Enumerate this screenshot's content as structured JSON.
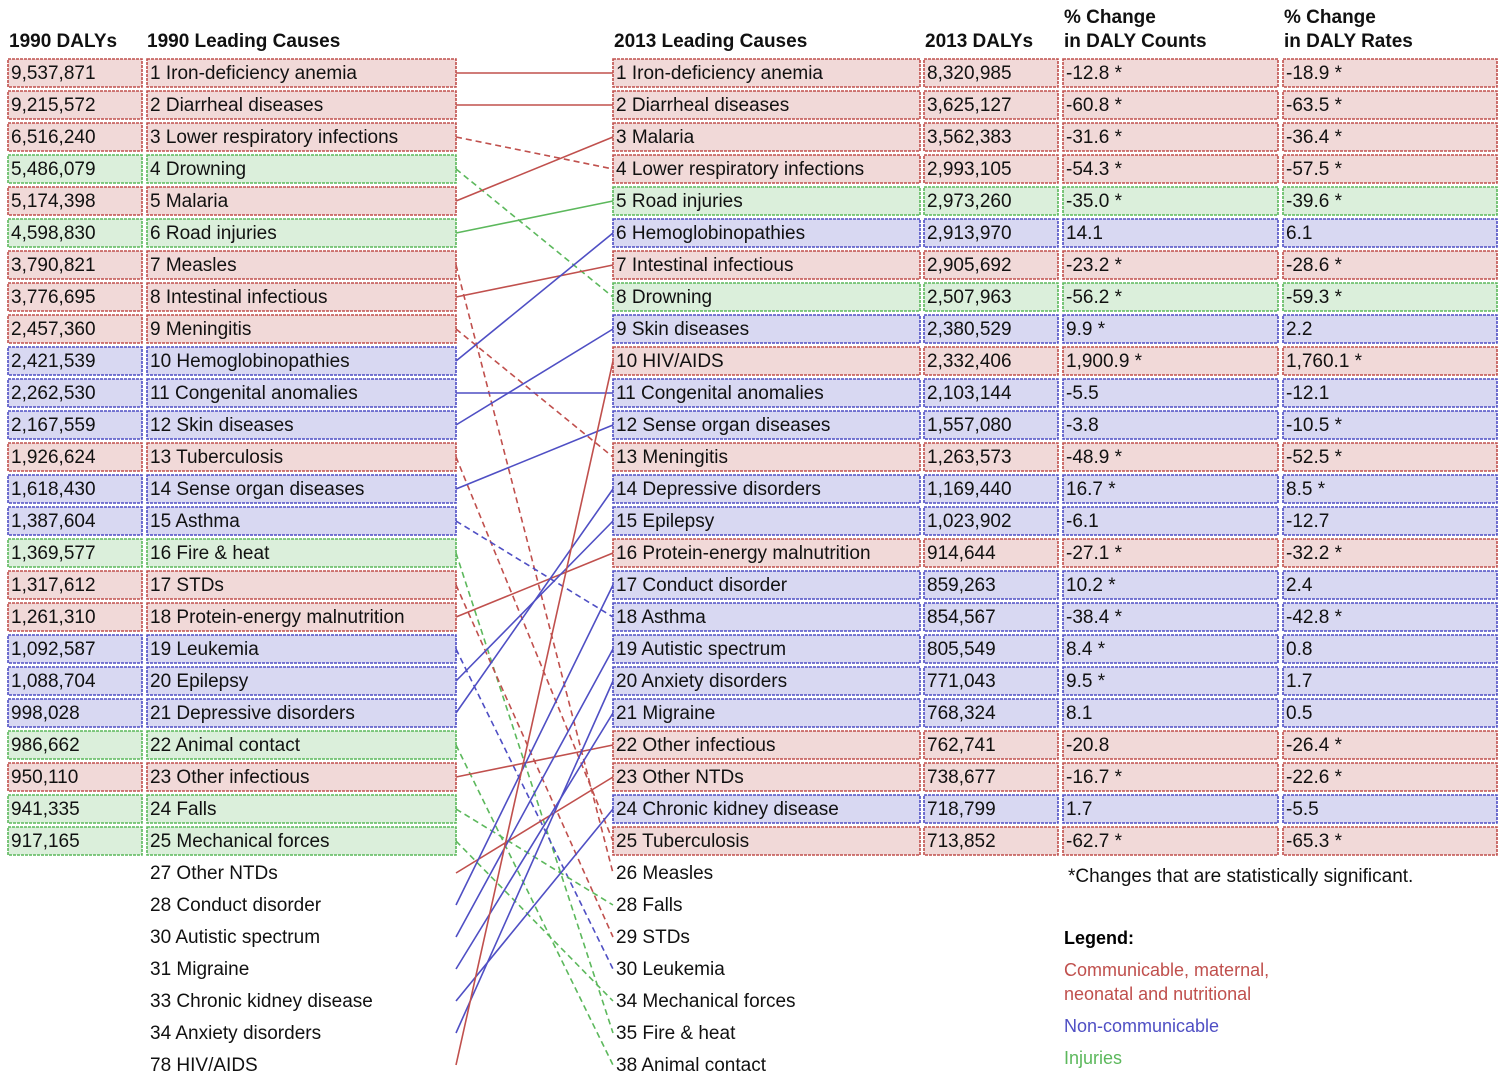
{
  "headers": {
    "daly1990": "1990 DALYs",
    "causes1990": "1990 Leading Causes",
    "causes2013": "2013 Leading Causes",
    "daly2013": "2013 DALYs",
    "counts": [
      "% Change",
      "in DALY Counts"
    ],
    "rates": [
      "% Change",
      "in DALY Rates"
    ]
  },
  "left": [
    {
      "label": "1 Iron-deficiency anemia",
      "daly": "9,537,871",
      "color": "#c0504d"
    },
    {
      "label": "2 Diarrheal diseases",
      "daly": "9,215,572",
      "color": "#c0504d"
    },
    {
      "label": "3 Lower respiratory infections",
      "daly": "6,516,240",
      "color": "#c0504d"
    },
    {
      "label": "4 Drowning",
      "daly": "5,486,079",
      "color": "#5cb85c"
    },
    {
      "label": "5 Malaria",
      "daly": "5,174,398",
      "color": "#c0504d"
    },
    {
      "label": "6 Road injuries",
      "daly": "4,598,830",
      "color": "#5cb85c"
    },
    {
      "label": "7 Measles",
      "daly": "3,790,821",
      "color": "#c0504d"
    },
    {
      "label": "8 Intestinal infectious",
      "daly": "3,776,695",
      "color": "#c0504d"
    },
    {
      "label": "9 Meningitis",
      "daly": "2,457,360",
      "color": "#c0504d"
    },
    {
      "label": "10 Hemoglobinopathies",
      "daly": "2,421,539",
      "color": "#4f4fc4"
    },
    {
      "label": "11 Congenital anomalies",
      "daly": "2,262,530",
      "color": "#4f4fc4"
    },
    {
      "label": "12 Skin diseases",
      "daly": "2,167,559",
      "color": "#4f4fc4"
    },
    {
      "label": "13 Tuberculosis",
      "daly": "1,926,624",
      "color": "#c0504d"
    },
    {
      "label": "14 Sense organ diseases",
      "daly": "1,618,430",
      "color": "#4f4fc4"
    },
    {
      "label": "15 Asthma",
      "daly": "1,387,604",
      "color": "#4f4fc4"
    },
    {
      "label": "16 Fire & heat",
      "daly": "1,369,577",
      "color": "#5cb85c"
    },
    {
      "label": "17 STDs",
      "daly": "1,317,612",
      "color": "#c0504d"
    },
    {
      "label": "18 Protein-energy malnutrition",
      "daly": "1,261,310",
      "color": "#c0504d"
    },
    {
      "label": "19 Leukemia",
      "daly": "1,092,587",
      "color": "#4f4fc4"
    },
    {
      "label": "20 Epilepsy",
      "daly": "1,088,704",
      "color": "#4f4fc4"
    },
    {
      "label": "21 Depressive disorders",
      "daly": "998,028",
      "color": "#4f4fc4"
    },
    {
      "label": "22 Animal contact",
      "daly": "986,662",
      "color": "#5cb85c"
    },
    {
      "label": "23 Other infectious",
      "daly": "950,110",
      "color": "#c0504d"
    },
    {
      "label": "24 Falls",
      "daly": "941,335",
      "color": "#5cb85c"
    },
    {
      "label": "25 Mechanical forces",
      "daly": "917,165",
      "color": "#5cb85c"
    },
    {
      "label": "27 Other NTDs",
      "color": "#c0504d"
    },
    {
      "label": "28 Conduct disorder",
      "color": "#4f4fc4"
    },
    {
      "label": "30 Autistic spectrum",
      "color": "#4f4fc4"
    },
    {
      "label": "31 Migraine",
      "color": "#4f4fc4"
    },
    {
      "label": "33 Chronic kidney disease",
      "color": "#4f4fc4"
    },
    {
      "label": "34 Anxiety disorders",
      "color": "#4f4fc4"
    },
    {
      "label": "78 HIV/AIDS",
      "color": "#c0504d"
    }
  ],
  "right": [
    {
      "label": "1 Iron-deficiency anemia",
      "daly": "8,320,985",
      "counts": "-12.8 *",
      "rates": "-18.9 *",
      "color": "#c0504d"
    },
    {
      "label": "2 Diarrheal diseases",
      "daly": "3,625,127",
      "counts": "-60.8 *",
      "rates": "-63.5 *",
      "color": "#c0504d"
    },
    {
      "label": "3 Malaria",
      "daly": "3,562,383",
      "counts": "-31.6 *",
      "rates": "-36.4 *",
      "color": "#c0504d"
    },
    {
      "label": "4 Lower respiratory infections",
      "daly": "2,993,105",
      "counts": "-54.3 *",
      "rates": "-57.5 *",
      "color": "#c0504d"
    },
    {
      "label": "5 Road injuries",
      "daly": "2,973,260",
      "counts": "-35.0 *",
      "rates": "-39.6 *",
      "color": "#5cb85c"
    },
    {
      "label": "6 Hemoglobinopathies",
      "daly": "2,913,970",
      "counts": "14.1",
      "rates": "6.1",
      "color": "#4f4fc4"
    },
    {
      "label": "7 Intestinal infectious",
      "daly": "2,905,692",
      "counts": "-23.2 *",
      "rates": "-28.6 *",
      "color": "#c0504d"
    },
    {
      "label": "8 Drowning",
      "daly": "2,507,963",
      "counts": "-56.2 *",
      "rates": "-59.3 *",
      "color": "#5cb85c"
    },
    {
      "label": "9 Skin diseases",
      "daly": "2,380,529",
      "counts": "9.9 *",
      "rates": "2.2",
      "color": "#4f4fc4"
    },
    {
      "label": "10 HIV/AIDS",
      "daly": "2,332,406",
      "counts": "1,900.9 *",
      "rates": "1,760.1 *",
      "color": "#c0504d"
    },
    {
      "label": "11 Congenital anomalies",
      "daly": "2,103,144",
      "counts": "-5.5",
      "rates": "-12.1",
      "color": "#4f4fc4"
    },
    {
      "label": "12 Sense organ diseases",
      "daly": "1,557,080",
      "counts": "-3.8",
      "rates": "-10.5 *",
      "color": "#4f4fc4"
    },
    {
      "label": "13 Meningitis",
      "daly": "1,263,573",
      "counts": "-48.9 *",
      "rates": "-52.5 *",
      "color": "#c0504d"
    },
    {
      "label": "14 Depressive disorders",
      "daly": "1,169,440",
      "counts": "16.7 *",
      "rates": "8.5 *",
      "color": "#4f4fc4"
    },
    {
      "label": "15 Epilepsy",
      "daly": "1,023,902",
      "counts": "-6.1",
      "rates": "-12.7",
      "color": "#4f4fc4"
    },
    {
      "label": "16 Protein-energy malnutrition",
      "daly": "914,644",
      "counts": "-27.1 *",
      "rates": "-32.2 *",
      "color": "#c0504d"
    },
    {
      "label": "17 Conduct disorder",
      "daly": "859,263",
      "counts": "10.2 *",
      "rates": "2.4",
      "color": "#4f4fc4"
    },
    {
      "label": "18 Asthma",
      "daly": "854,567",
      "counts": "-38.4 *",
      "rates": "-42.8 *",
      "color": "#4f4fc4"
    },
    {
      "label": "19 Autistic spectrum",
      "daly": "805,549",
      "counts": "8.4 *",
      "rates": "0.8",
      "color": "#4f4fc4"
    },
    {
      "label": "20 Anxiety disorders",
      "daly": "771,043",
      "counts": "9.5 *",
      "rates": "1.7",
      "color": "#4f4fc4"
    },
    {
      "label": "21 Migraine",
      "daly": "768,324",
      "counts": "8.1",
      "rates": "0.5",
      "color": "#4f4fc4"
    },
    {
      "label": "22 Other infectious",
      "daly": "762,741",
      "counts": "-20.8",
      "rates": "-26.4 *",
      "color": "#c0504d"
    },
    {
      "label": "23 Other NTDs",
      "daly": "738,677",
      "counts": "-16.7 *",
      "rates": "-22.6 *",
      "color": "#c0504d"
    },
    {
      "label": "24 Chronic kidney disease",
      "daly": "718,799",
      "counts": "1.7",
      "rates": "-5.5",
      "color": "#4f4fc4"
    },
    {
      "label": "25 Tuberculosis",
      "daly": "713,852",
      "counts": "-62.7 *",
      "rates": "-65.3 *",
      "color": "#c0504d"
    },
    {
      "label": "26 Measles",
      "color": "#c0504d"
    },
    {
      "label": "28 Falls",
      "color": "#5cb85c"
    },
    {
      "label": "29 STDs",
      "color": "#c0504d"
    },
    {
      "label": "30 Leukemia",
      "color": "#4f4fc4"
    },
    {
      "label": "34 Mechanical forces",
      "color": "#5cb85c"
    },
    {
      "label": "35 Fire & heat",
      "color": "#5cb85c"
    },
    {
      "label": "38 Animal contact",
      "color": "#5cb85c"
    }
  ],
  "footnote": "*Changes that are statistically significant.",
  "legend": {
    "title": "Legend:",
    "items": [
      {
        "label": "Communicable, maternal, neonatal and nutritional",
        "color": "#c0504d"
      },
      {
        "label": "Non-communicable",
        "color": "#4f4fc4"
      },
      {
        "label": "Injuries",
        "color": "#5cb85c"
      }
    ]
  }
}
